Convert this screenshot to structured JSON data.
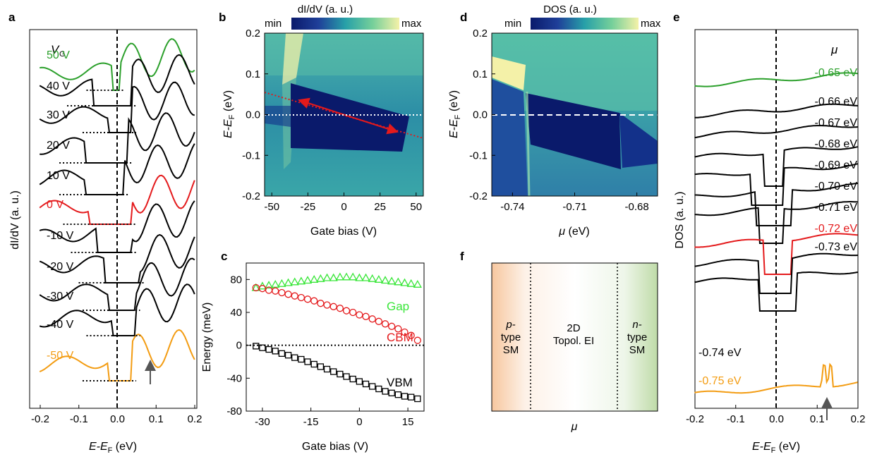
{
  "colors": {
    "green": "#2ca02c",
    "red": "#e41a1c",
    "orange": "#f39c12",
    "black": "#000000",
    "bright_green": "#39e639",
    "arrow_gray": "#555555"
  },
  "panels": {
    "a": {
      "label": "a",
      "vg_symbol": "V",
      "vg_subscript": "G",
      "ylabel": "dI/dV (a. u.)",
      "xlabel": "E-E",
      "xlabel_sub": "F",
      "xlabel_unit": " (eV)",
      "xticks": [
        "-0.2",
        "-0.1",
        "0.0",
        "0.1",
        "0.2"
      ],
      "curve_labels": [
        "50 V",
        "40 V",
        "30 V",
        "20 V",
        "10 V",
        "0 V",
        "-10 V",
        "-20 V",
        "-30 V",
        "-40 V",
        "-50 V"
      ]
    },
    "b": {
      "label": "b",
      "colorbar_title": "dI/dV (a. u.)",
      "colorbar_min": "min",
      "colorbar_max": "max",
      "ylabel": "E-E",
      "ylabel_sub": "F",
      "ylabel_unit": " (eV)",
      "xlabel": "Gate bias (V)",
      "xticks": [
        "-50",
        "-25",
        "0",
        "25",
        "50"
      ],
      "yticks": [
        "0.2",
        "0.1",
        "0.0",
        "-0.1",
        "-0.2"
      ]
    },
    "c": {
      "label": "c",
      "ylabel": "Energy (meV)",
      "xlabel": "Gate bias (V)",
      "xticks": [
        "-30",
        "-15",
        "0",
        "15"
      ],
      "yticks": [
        "80",
        "40",
        "0",
        "-40",
        "-80"
      ],
      "legend_gap": "Gap",
      "legend_cbm": "CBM",
      "legend_vbm": "VBM"
    },
    "d": {
      "label": "d",
      "colorbar_title": "DOS (a. u.)",
      "colorbar_min": "min",
      "colorbar_max": "max",
      "ylabel": "E-E",
      "ylabel_sub": "F",
      "ylabel_unit": " (eV)",
      "xlabel_sym": "μ",
      "xlabel_unit": " (eV)",
      "xticks": [
        "-0.74",
        "-0.71",
        "-0.68"
      ],
      "yticks": [
        "0.2",
        "0.1",
        "0.0",
        "-0.1",
        "-0.2"
      ]
    },
    "e": {
      "label": "e",
      "mu_symbol": "μ",
      "ylabel": "DOS (a. u.)",
      "xlabel": "E-E",
      "xlabel_sub": "F",
      "xlabel_unit": " (eV)",
      "xticks": [
        "-0.2",
        "-0.1",
        "0.0",
        "0.1",
        "0.2"
      ],
      "curve_labels": [
        "-0.65 eV",
        "-0.66 eV",
        "-0.67 eV",
        "-0.68 eV",
        "-0.69 eV",
        "-0.70 eV",
        "-0.71 eV",
        "-0.72 eV",
        "-0.73 eV",
        "-0.74 eV",
        "-0.75 eV"
      ]
    },
    "f": {
      "label": "f",
      "region_p_line1": "p-",
      "region_p_line2": "type",
      "region_p_line3": "SM",
      "region_mid_line1": "2D",
      "region_mid_line2": "Topol. EI",
      "region_n_line1": "n-",
      "region_n_line2": "type",
      "region_n_line3": "SM",
      "xlabel": "μ"
    }
  },
  "chart_data": [
    {
      "panel": "a",
      "type": "line",
      "xlim": [
        -0.2,
        0.2
      ],
      "series": [
        {
          "name": "50 V",
          "color": "green"
        },
        {
          "name": "40 V",
          "color": "black"
        },
        {
          "name": "30 V",
          "color": "black"
        },
        {
          "name": "20 V",
          "color": "black"
        },
        {
          "name": "10 V",
          "color": "black"
        },
        {
          "name": "0 V",
          "color": "red"
        },
        {
          "name": "-10 V",
          "color": "black"
        },
        {
          "name": "-20 V",
          "color": "black"
        },
        {
          "name": "-30 V",
          "color": "black"
        },
        {
          "name": "-40 V",
          "color": "black"
        },
        {
          "name": "-50 V",
          "color": "orange"
        }
      ]
    },
    {
      "panel": "b",
      "type": "heatmap",
      "xlim": [
        -55,
        55
      ],
      "ylim": [
        -0.2,
        0.2
      ]
    },
    {
      "panel": "c",
      "type": "scatter",
      "xlim": [
        -35,
        20
      ],
      "ylim": [
        -80,
        100
      ],
      "x": [
        -32,
        -30,
        -28,
        -26,
        -24,
        -22,
        -20,
        -18,
        -16,
        -14,
        -12,
        -10,
        -8,
        -6,
        -4,
        -2,
        0,
        2,
        4,
        6,
        8,
        10,
        12,
        14,
        16,
        18
      ],
      "series": [
        {
          "name": "Gap",
          "color": "bright_green",
          "values": [
            70,
            72,
            73,
            74,
            75,
            76,
            77,
            78,
            79,
            80,
            81,
            82,
            82,
            83,
            83,
            83,
            82,
            82,
            81,
            80,
            79,
            78,
            77,
            76,
            75,
            74
          ]
        },
        {
          "name": "CBM",
          "color": "red",
          "values": [
            70,
            69,
            67,
            66,
            64,
            62,
            60,
            58,
            56,
            54,
            51,
            49,
            47,
            45,
            42,
            40,
            37,
            35,
            32,
            29,
            26,
            23,
            20,
            16,
            12,
            6
          ]
        },
        {
          "name": "VBM",
          "color": "black",
          "values": [
            -1,
            -3,
            -5,
            -7,
            -10,
            -12,
            -15,
            -17,
            -20,
            -23,
            -26,
            -29,
            -32,
            -35,
            -38,
            -41,
            -44,
            -47,
            -50,
            -53,
            -56,
            -58,
            -60,
            -62,
            -63,
            -65
          ]
        }
      ]
    },
    {
      "panel": "d",
      "type": "heatmap",
      "xlim": [
        -0.75,
        -0.67
      ],
      "ylim": [
        -0.2,
        0.2
      ]
    },
    {
      "panel": "e",
      "type": "line",
      "xlim": [
        -0.2,
        0.2
      ],
      "series": [
        {
          "name": "-0.65 eV",
          "color": "green"
        },
        {
          "name": "-0.66 eV",
          "color": "black"
        },
        {
          "name": "-0.67 eV",
          "color": "black"
        },
        {
          "name": "-0.68 eV",
          "color": "black"
        },
        {
          "name": "-0.69 eV",
          "color": "black"
        },
        {
          "name": "-0.70 eV",
          "color": "black"
        },
        {
          "name": "-0.71 eV",
          "color": "black"
        },
        {
          "name": "-0.72 eV",
          "color": "red"
        },
        {
          "name": "-0.73 eV",
          "color": "black"
        },
        {
          "name": "-0.74 eV",
          "color": "black"
        },
        {
          "name": "-0.75 eV",
          "color": "orange"
        }
      ]
    }
  ]
}
